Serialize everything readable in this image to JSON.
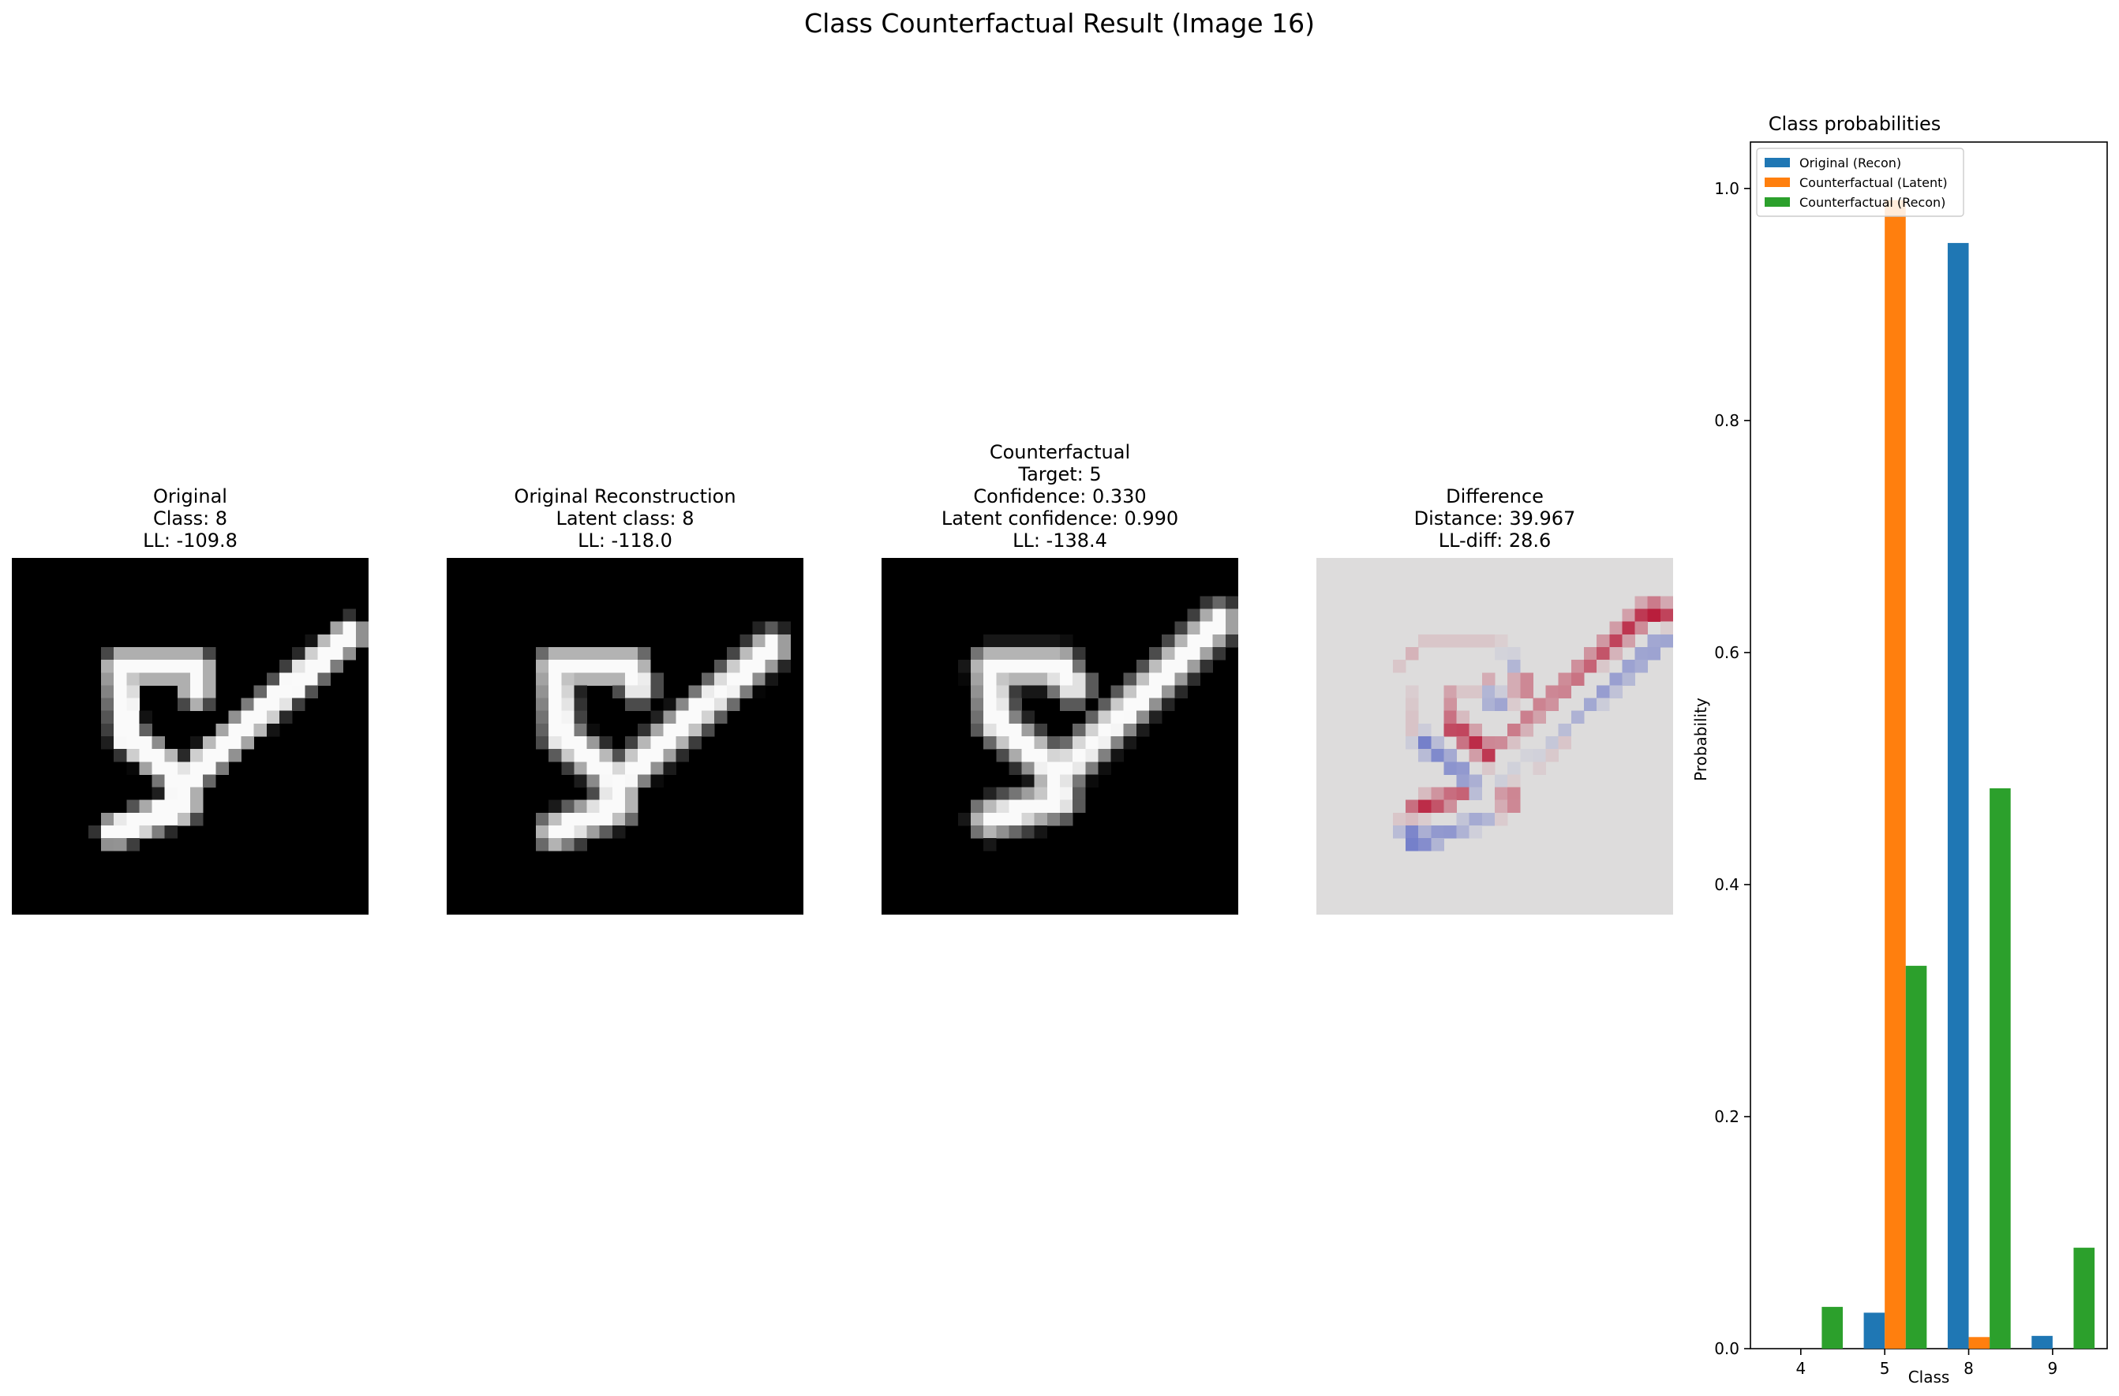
{
  "figure_title": "Class Counterfactual Result (Image 16)",
  "panels": [
    {
      "title_lines": [
        "Original",
        "Class: 8",
        "LL: -109.8"
      ],
      "colormap": "gray"
    },
    {
      "title_lines": [
        "Original Reconstruction",
        "Latent class: 8",
        "LL: -118.0"
      ],
      "colormap": "gray"
    },
    {
      "title_lines": [
        "Counterfactual",
        "Target: 5",
        "Confidence: 0.330",
        "Latent confidence: 0.990",
        "LL: -138.4"
      ],
      "colormap": "gray"
    },
    {
      "title_lines": [
        "Difference",
        "Distance: 39.967",
        "LL-diff: 28.6"
      ],
      "colormap": "coolwarm"
    }
  ],
  "chart_data": {
    "type": "bar",
    "title": "Class probabilities",
    "xlabel": "Class",
    "ylabel": "Probability",
    "categories": [
      "4",
      "5",
      "8",
      "9"
    ],
    "ylim": [
      0,
      1.04
    ],
    "yticks": [
      0.0,
      0.2,
      0.4,
      0.6,
      0.8,
      1.0
    ],
    "legend_placement": "top-left",
    "series": [
      {
        "name": "Original (Recon)",
        "color": "#1f77b4",
        "values": [
          0.0,
          0.031,
          0.953,
          0.011
        ]
      },
      {
        "name": "Counterfactual (Latent)",
        "color": "#ff7f0e",
        "values": [
          0.0,
          0.99,
          0.01,
          0.0
        ]
      },
      {
        "name": "Counterfactual (Recon)",
        "color": "#2ca02c",
        "values": [
          0.036,
          0.33,
          0.483,
          0.087
        ]
      }
    ]
  }
}
